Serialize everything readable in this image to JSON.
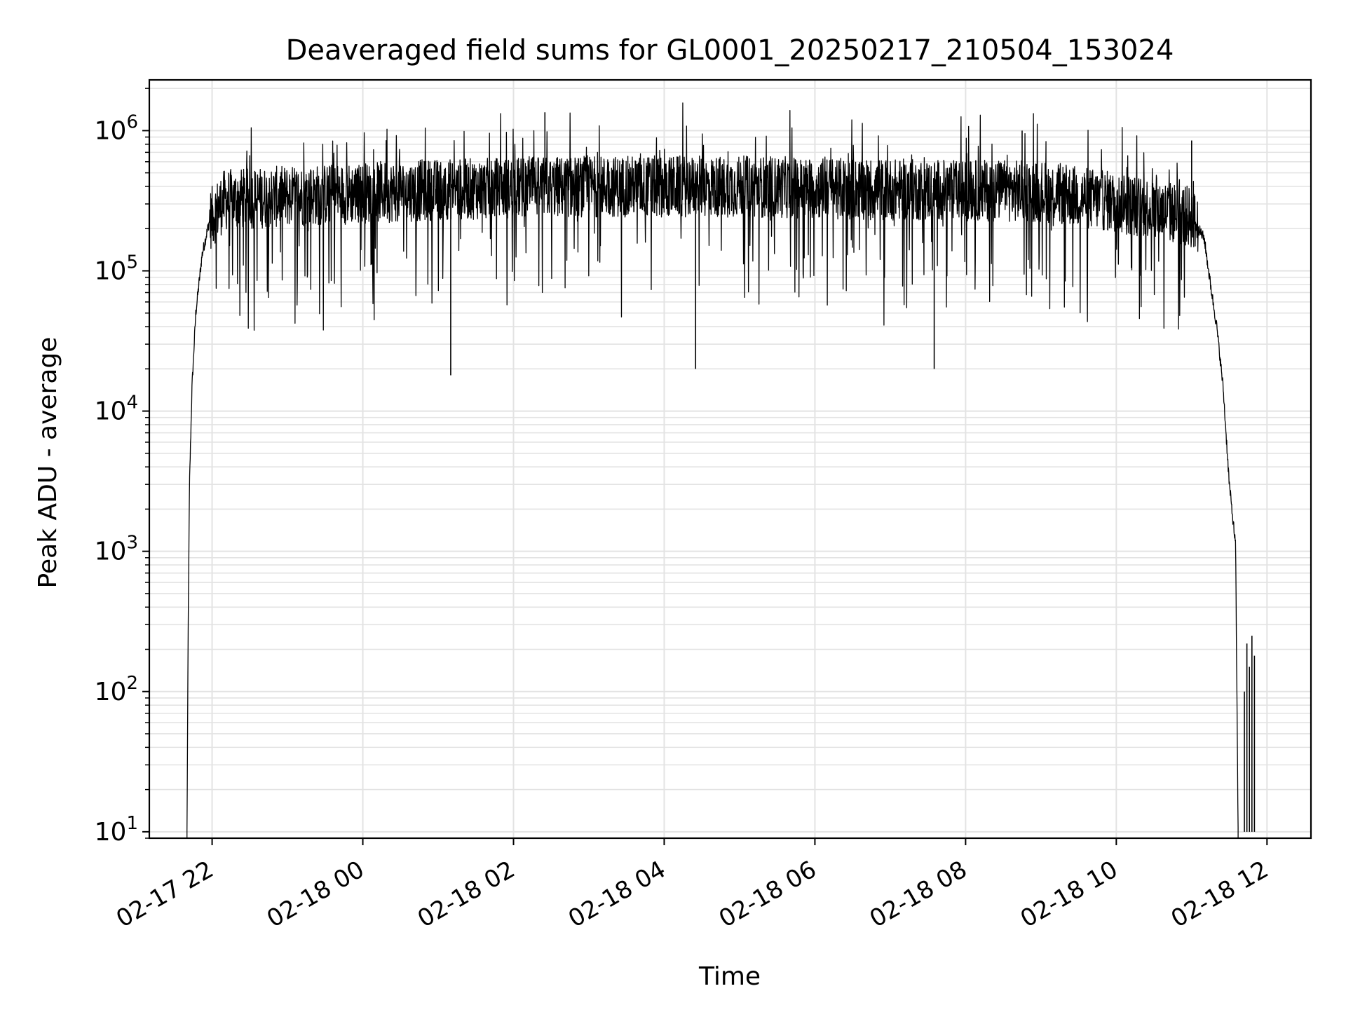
{
  "chart_data": {
    "type": "line",
    "title": "Deaveraged field sums for GL0001_20250217_210504_153024",
    "xlabel": "Time",
    "ylabel": "Peak ADU - average",
    "yscale": "log",
    "ylim": [
      9,
      2300000
    ],
    "xlim": [
      "2025-02-17 21:10",
      "2025-02-18 12:35"
    ],
    "grid": true,
    "x_ticks": [
      {
        "value": "2025-02-17 22:00",
        "label": "02-17 22"
      },
      {
        "value": "2025-02-18 00:00",
        "label": "02-18 00"
      },
      {
        "value": "2025-02-18 02:00",
        "label": "02-18 02"
      },
      {
        "value": "2025-02-18 04:00",
        "label": "02-18 04"
      },
      {
        "value": "2025-02-18 06:00",
        "label": "02-18 06"
      },
      {
        "value": "2025-02-18 08:00",
        "label": "02-18 08"
      },
      {
        "value": "2025-02-18 10:00",
        "label": "02-18 10"
      },
      {
        "value": "2025-02-18 12:00",
        "label": "02-18 12"
      }
    ],
    "y_ticks": [
      {
        "value": 10,
        "base": "10",
        "exp": "1"
      },
      {
        "value": 100,
        "base": "10",
        "exp": "2"
      },
      {
        "value": 1000,
        "base": "10",
        "exp": "3"
      },
      {
        "value": 10000,
        "base": "10",
        "exp": "4"
      },
      {
        "value": 100000,
        "base": "10",
        "exp": "5"
      },
      {
        "value": 1000000,
        "base": "10",
        "exp": "6"
      }
    ],
    "series": [
      {
        "color": "#000000",
        "envelope": [
          {
            "x": "2025-02-17 21:40",
            "y": 10
          },
          {
            "x": "2025-02-17 21:41",
            "y": 330
          },
          {
            "x": "2025-02-17 21:42",
            "y": 3000
          },
          {
            "x": "2025-02-17 21:44",
            "y": 15000
          },
          {
            "x": "2025-02-17 21:47",
            "y": 50000
          },
          {
            "x": "2025-02-17 21:52",
            "y": 130000
          },
          {
            "x": "2025-02-17 21:58",
            "y": 230000
          },
          {
            "x": "2025-02-17 22:10",
            "y": 320000
          },
          {
            "x": "2025-02-17 23:00",
            "y": 340000
          },
          {
            "x": "2025-02-18 01:00",
            "y": 380000
          },
          {
            "x": "2025-02-18 03:00",
            "y": 400000
          },
          {
            "x": "2025-02-18 05:00",
            "y": 400000
          },
          {
            "x": "2025-02-18 07:00",
            "y": 380000
          },
          {
            "x": "2025-02-18 09:00",
            "y": 370000
          },
          {
            "x": "2025-02-18 10:30",
            "y": 280000
          },
          {
            "x": "2025-02-18 11:00",
            "y": 240000
          },
          {
            "x": "2025-02-18 11:10",
            "y": 170000
          },
          {
            "x": "2025-02-18 11:15",
            "y": 80000
          },
          {
            "x": "2025-02-18 11:20",
            "y": 40000
          },
          {
            "x": "2025-02-18 11:25",
            "y": 15000
          },
          {
            "x": "2025-02-18 11:30",
            "y": 3000
          },
          {
            "x": "2025-02-18 11:35",
            "y": 1100
          },
          {
            "x": "2025-02-18 11:37",
            "y": 10
          }
        ],
        "spikes": [
          {
            "x": "2025-02-18 02:25",
            "y": 1350000
          },
          {
            "x": "2025-02-18 08:45",
            "y": 1000000
          },
          {
            "x": "2025-02-18 11:00",
            "y": 850000
          },
          {
            "x": "2025-02-18 01:10",
            "y": 18000
          },
          {
            "x": "2025-02-18 04:25",
            "y": 20000
          },
          {
            "x": "2025-02-18 07:35",
            "y": 20000
          },
          {
            "x": "2025-02-18 11:42",
            "y": 100
          },
          {
            "x": "2025-02-18 11:44",
            "y": 220
          },
          {
            "x": "2025-02-18 11:46",
            "y": 150
          },
          {
            "x": "2025-02-18 11:48",
            "y": 250
          },
          {
            "x": "2025-02-18 11:50",
            "y": 180
          }
        ]
      }
    ]
  }
}
